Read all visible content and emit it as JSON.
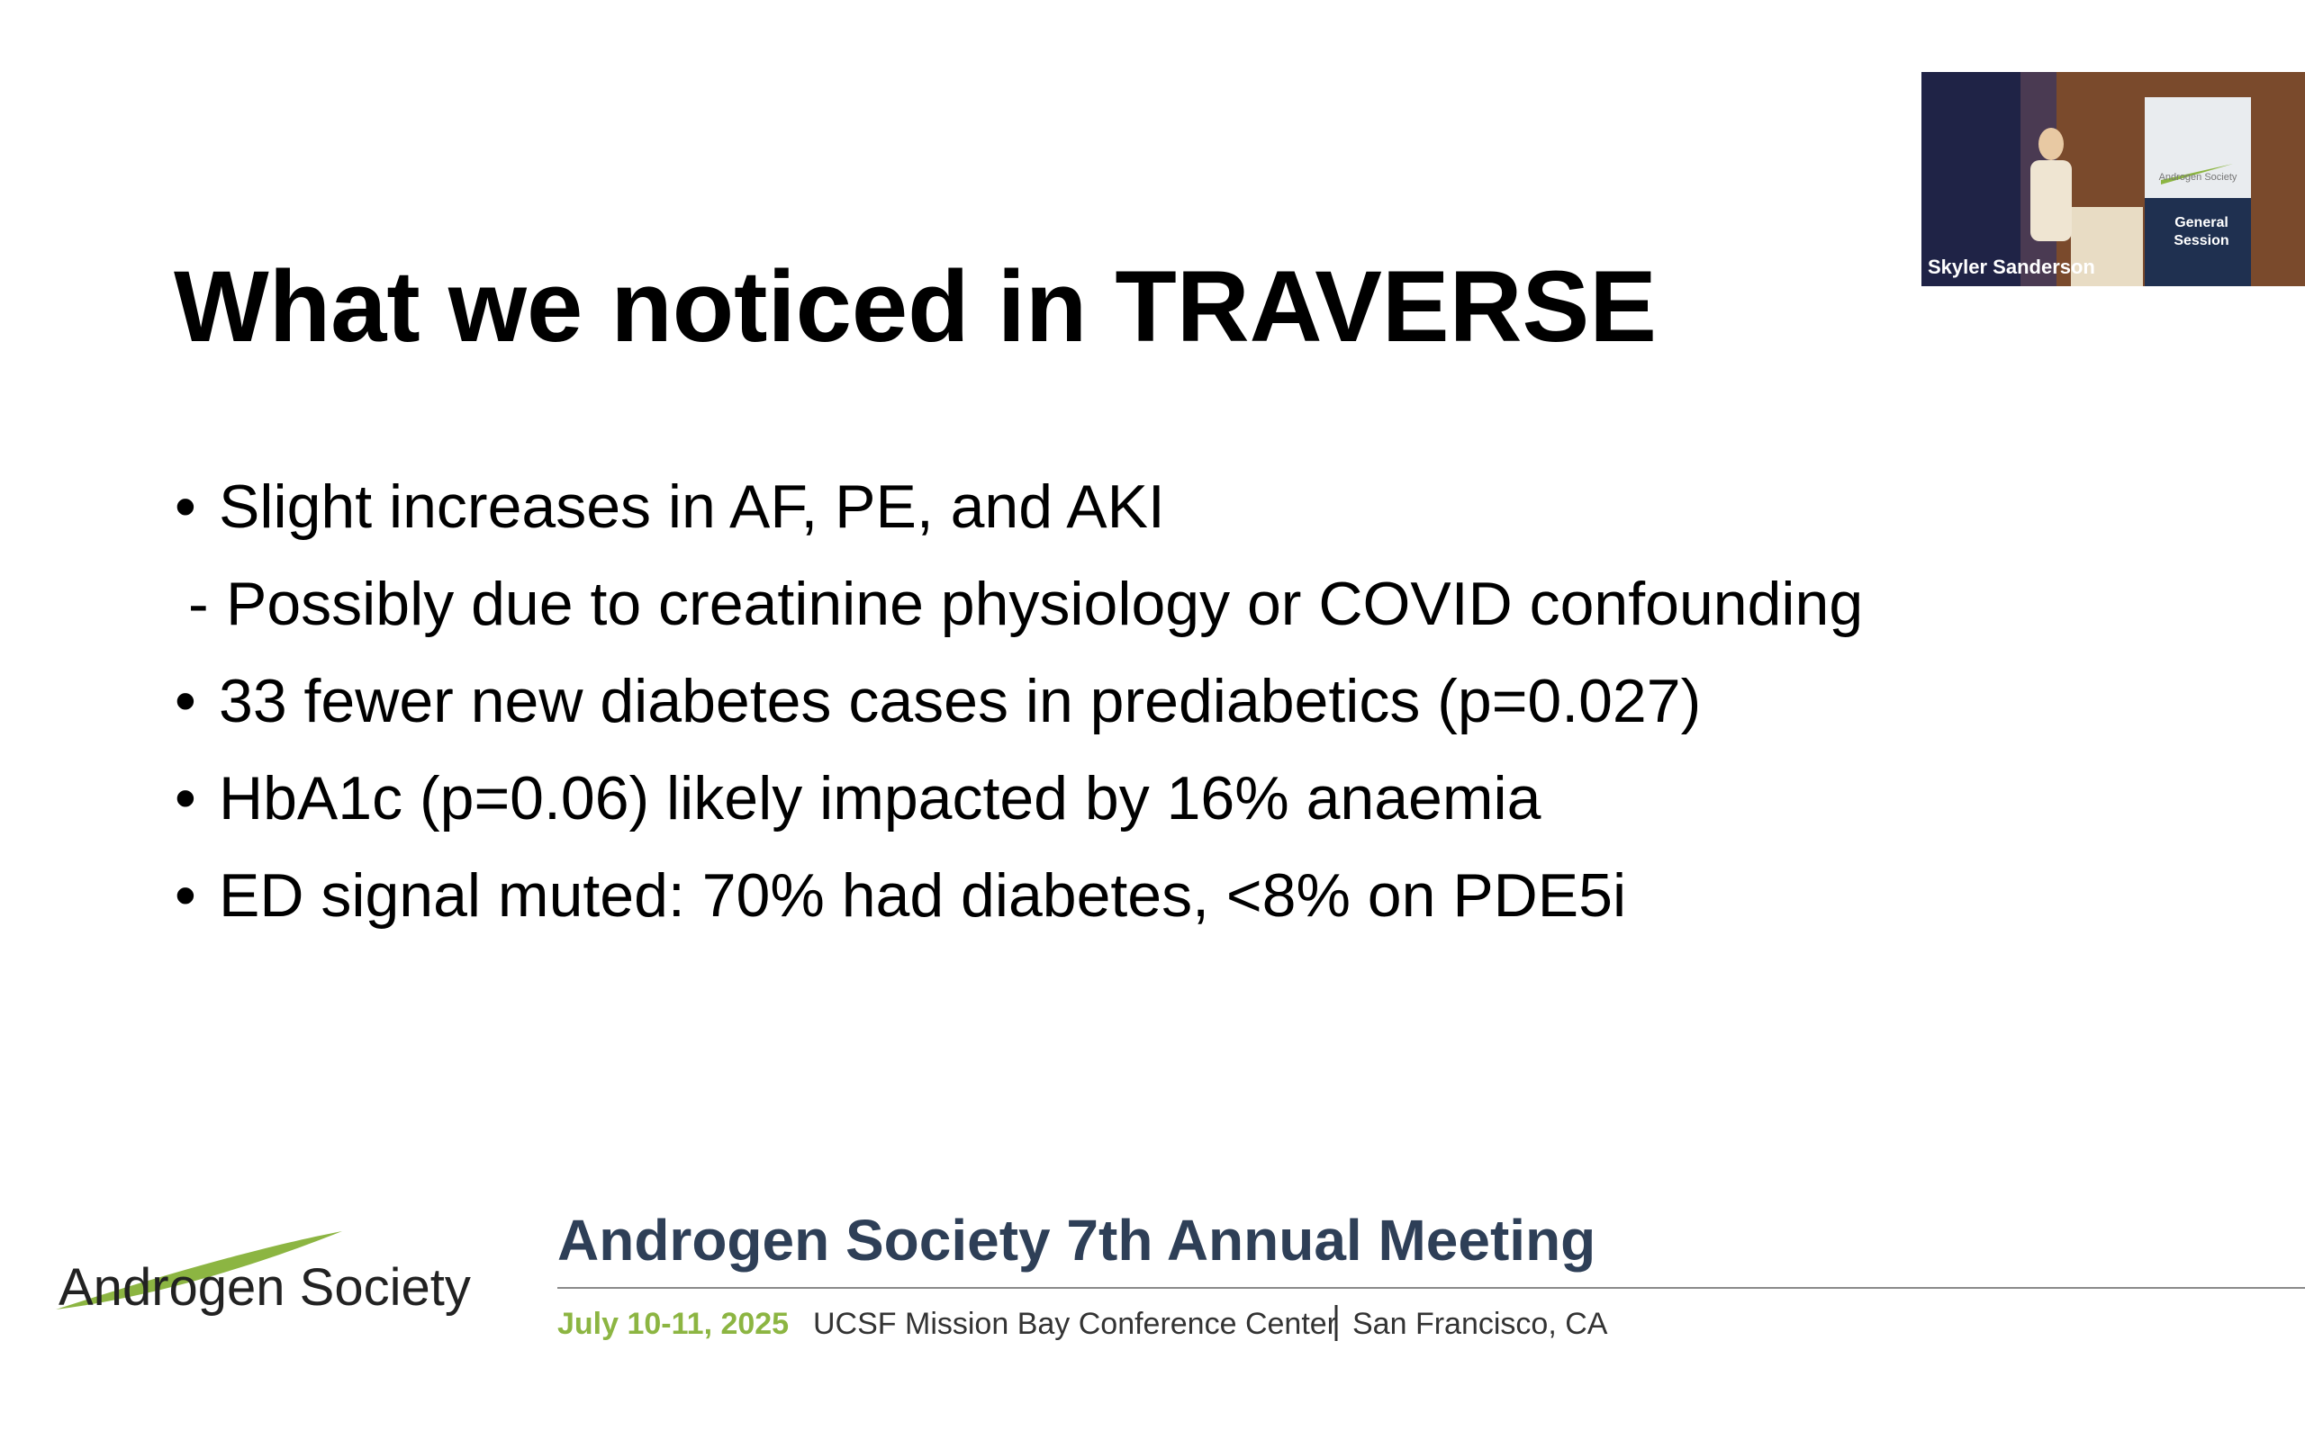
{
  "slide": {
    "title": "What we noticed in TRAVERSE",
    "items": [
      {
        "marker": "•",
        "text": "Slight increases in AF, PE, and AKI"
      },
      {
        "marker": "-",
        "text": "Possibly due to creatinine physiology or COVID confounding"
      },
      {
        "marker": "•",
        "text": "33 fewer new diabetes cases in prediabetics (p=0.027)"
      },
      {
        "marker": "•",
        "text": "HbA1c (p=0.06) likely impacted by 16% anaemia"
      },
      {
        "marker": "•",
        "text": "ED signal muted: 70% had diabetes, <8% on PDE5i"
      }
    ]
  },
  "footer": {
    "logo": "Androgen Society",
    "meeting": "Androgen Society 7th Annual Meeting",
    "date": "July 10-11, 2025",
    "venue": "UCSF Mission Bay Conference Center",
    "location": "San Francisco, CA"
  },
  "video": {
    "speaker": "Skyler Sanderson",
    "banner_logo": "Androgen Society",
    "banner_lines": [
      "General",
      "Session"
    ]
  }
}
